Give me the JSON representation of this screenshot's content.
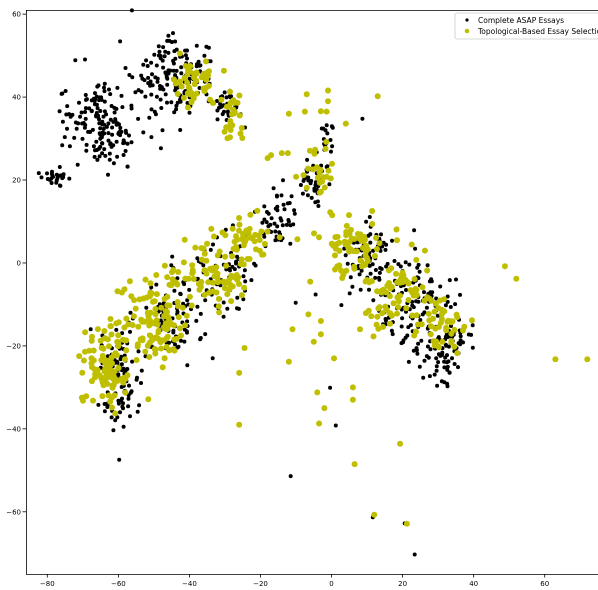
{
  "chart_data": {
    "type": "scatter",
    "title": "",
    "xlabel": "",
    "ylabel": "",
    "xlim": [
      -86,
      75
    ],
    "ylim": [
      -75,
      61
    ],
    "xticks": [
      -80,
      -60,
      -40,
      -20,
      0,
      20,
      40,
      60
    ],
    "yticks": [
      -60,
      -40,
      -20,
      0,
      20,
      40,
      60
    ],
    "xtick_labels": [
      "−80",
      "−60",
      "−40",
      "−20",
      "0",
      "20",
      "40",
      "60"
    ],
    "ytick_labels": [
      "−60",
      "−40",
      "−20",
      "0",
      "20",
      "40",
      "60"
    ],
    "grid": false,
    "legend_position": "top-right",
    "series": [
      {
        "name": "Complete ASAP Essays",
        "color": "#000000",
        "marker_size": 2.0,
        "clusters": [
          {
            "center": [
              -64,
              33
            ],
            "spread": [
              7,
              7
            ],
            "count": 160
          },
          {
            "center": [
              -45,
              45
            ],
            "spread": [
              7,
              6
            ],
            "count": 150
          },
          {
            "center": [
              -78,
              21
            ],
            "spread": [
              3,
              1.5
            ],
            "count": 25
          },
          {
            "center": [
              -30,
              38
            ],
            "spread": [
              3,
              3
            ],
            "count": 30
          },
          {
            "center": [
              -60,
              -28
            ],
            "spread": [
              4,
              7
            ],
            "count": 100
          },
          {
            "center": [
              -45,
              -12
            ],
            "spread": [
              6,
              7
            ],
            "count": 90
          },
          {
            "center": [
              -30,
              -2
            ],
            "spread": [
              6,
              6
            ],
            "count": 70
          },
          {
            "center": [
              -15,
              10
            ],
            "spread": [
              4,
              5
            ],
            "count": 50
          },
          {
            "center": [
              -5,
              20
            ],
            "spread": [
              3,
              4
            ],
            "count": 40
          },
          {
            "center": [
              -1,
              30
            ],
            "spread": [
              2,
              3
            ],
            "count": 15
          },
          {
            "center": [
              10,
              2
            ],
            "spread": [
              6,
              5
            ],
            "count": 70
          },
          {
            "center": [
              22,
              -10
            ],
            "spread": [
              7,
              8
            ],
            "count": 110
          },
          {
            "center": [
              32,
              -20
            ],
            "spread": [
              5,
              5
            ],
            "count": 90
          }
        ],
        "points": [
          [
            8.7,
            34.8
          ],
          [
            -11.5,
            -51.4
          ],
          [
            11.6,
            -61.3
          ],
          [
            20.6,
            -62.8
          ],
          [
            23.4,
            -70.3
          ],
          [
            1.2,
            -39.2
          ],
          [
            -0.4,
            -30.1
          ],
          [
            -4.5,
            -7.6
          ],
          [
            -10.1,
            -9.6
          ]
        ]
      },
      {
        "name": "Topological-Based Essay Selection",
        "color": "#bfbf00",
        "marker_size": 3.0,
        "clusters": [
          {
            "center": [
              -63,
              -25
            ],
            "spread": [
              4,
              7
            ],
            "count": 100
          },
          {
            "center": [
              -50,
              -14
            ],
            "spread": [
              6,
              8
            ],
            "count": 110
          },
          {
            "center": [
              -34,
              -4
            ],
            "spread": [
              7,
              6
            ],
            "count": 80
          },
          {
            "center": [
              -24,
              6
            ],
            "spread": [
              4,
              4
            ],
            "count": 40
          },
          {
            "center": [
              -38,
              43
            ],
            "spread": [
              5,
              4
            ],
            "count": 45
          },
          {
            "center": [
              -28,
              36
            ],
            "spread": [
              2,
              4
            ],
            "count": 25
          },
          {
            "center": [
              -4,
              22
            ],
            "spread": [
              3,
              4
            ],
            "count": 25
          },
          {
            "center": [
              7,
              4
            ],
            "spread": [
              6,
              4
            ],
            "count": 70
          },
          {
            "center": [
              18,
              -8
            ],
            "spread": [
              7,
              7
            ],
            "count": 80
          },
          {
            "center": [
              32,
              -15
            ],
            "spread": [
              4,
              6
            ],
            "count": 40
          }
        ],
        "points": [
          [
            -26,
            -39
          ],
          [
            -26,
            -26.5
          ],
          [
            -24.5,
            -20.5
          ],
          [
            -12,
            -23.8
          ],
          [
            -11,
            -16
          ],
          [
            -9.6,
            5.7
          ],
          [
            -6.5,
            -12.4
          ],
          [
            -6,
            -4.5
          ],
          [
            -5,
            -19
          ],
          [
            -4,
            -31.2
          ],
          [
            -3,
            -17.2
          ],
          [
            -3,
            -14
          ],
          [
            -3.5,
            -38.7
          ],
          [
            -2,
            -35
          ],
          [
            0.7,
            -23
          ],
          [
            6,
            -30
          ],
          [
            6,
            -33
          ],
          [
            6.5,
            -48.5
          ],
          [
            12,
            -60.7
          ],
          [
            21.2,
            -62.9
          ],
          [
            19.3,
            -43.6
          ],
          [
            48.8,
            -0.8
          ],
          [
            52,
            -3.8
          ],
          [
            63,
            -23.2
          ],
          [
            72,
            -23.2
          ],
          [
            -1,
            41.6
          ],
          [
            -1,
            39
          ],
          [
            -7,
            40.7
          ],
          [
            -7.5,
            36.5
          ],
          [
            -12,
            36
          ],
          [
            -17,
            26
          ],
          [
            -14,
            26.5
          ],
          [
            13,
            40.2
          ],
          [
            4,
            33.6
          ],
          [
            -1.4,
            36.5
          ],
          [
            -3,
            36.6
          ],
          [
            -12.3,
            26.5
          ],
          [
            -18,
            25.3
          ]
        ]
      }
    ]
  }
}
